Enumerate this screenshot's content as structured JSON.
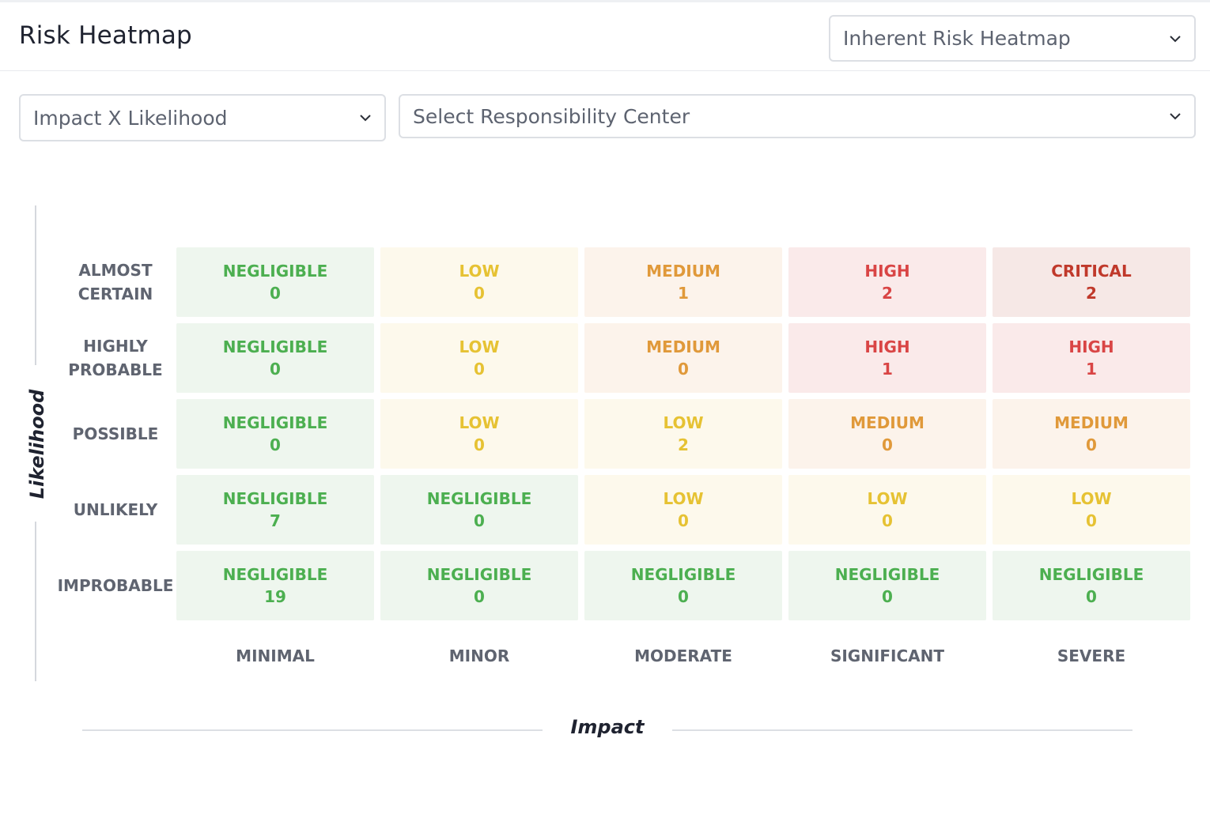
{
  "header": {
    "title": "Risk Heatmap",
    "heatmap_type_select": {
      "value": "Inherent Risk Heatmap"
    }
  },
  "filters": {
    "axis_select": {
      "value": "Impact X Likelihood"
    },
    "responsibility_center_select": {
      "placeholder": "Select Responsibility Center"
    }
  },
  "chart_data": {
    "type": "heatmap",
    "ylabel": "Likelihood",
    "xlabel": "Impact",
    "rows": [
      {
        "label_lines": [
          "ALMOST",
          "CERTAIN"
        ],
        "cells": [
          {
            "level": "NEGLIGIBLE",
            "count": "0"
          },
          {
            "level": "LOW",
            "count": "0"
          },
          {
            "level": "MEDIUM",
            "count": "1"
          },
          {
            "level": "HIGH",
            "count": "2"
          },
          {
            "level": "CRITICAL",
            "count": "2"
          }
        ]
      },
      {
        "label_lines": [
          "HIGHLY",
          "PROBABLE"
        ],
        "cells": [
          {
            "level": "NEGLIGIBLE",
            "count": "0"
          },
          {
            "level": "LOW",
            "count": "0"
          },
          {
            "level": "MEDIUM",
            "count": "0"
          },
          {
            "level": "HIGH",
            "count": "1"
          },
          {
            "level": "HIGH",
            "count": "1"
          }
        ]
      },
      {
        "label_lines": [
          "POSSIBLE"
        ],
        "cells": [
          {
            "level": "NEGLIGIBLE",
            "count": "0"
          },
          {
            "level": "LOW",
            "count": "0"
          },
          {
            "level": "LOW",
            "count": "2"
          },
          {
            "level": "MEDIUM",
            "count": "0"
          },
          {
            "level": "MEDIUM",
            "count": "0"
          }
        ]
      },
      {
        "label_lines": [
          "UNLIKELY"
        ],
        "cells": [
          {
            "level": "NEGLIGIBLE",
            "count": "7"
          },
          {
            "level": "NEGLIGIBLE",
            "count": "0"
          },
          {
            "level": "LOW",
            "count": "0"
          },
          {
            "level": "LOW",
            "count": "0"
          },
          {
            "level": "LOW",
            "count": "0"
          }
        ]
      },
      {
        "label_lines": [
          "IMPROBABLE"
        ],
        "cells": [
          {
            "level": "NEGLIGIBLE",
            "count": "19"
          },
          {
            "level": "NEGLIGIBLE",
            "count": "0"
          },
          {
            "level": "NEGLIGIBLE",
            "count": "0"
          },
          {
            "level": "NEGLIGIBLE",
            "count": "0"
          },
          {
            "level": "NEGLIGIBLE",
            "count": "0"
          }
        ]
      }
    ],
    "columns": [
      "MINIMAL",
      "MINOR",
      "MODERATE",
      "SIGNIFICANT",
      "SEVERE"
    ],
    "level_colors": {
      "NEGLIGIBLE": {
        "text": "#4caf50",
        "bg": "#eef6ee"
      },
      "LOW": {
        "text": "#e6c233",
        "bg": "#fdf9ec"
      },
      "MEDIUM": {
        "text": "#e0993a",
        "bg": "#fcf3eb"
      },
      "HIGH": {
        "text": "#d94545",
        "bg": "#faeaea"
      },
      "CRITICAL": {
        "text": "#c0392b",
        "bg": "#f6e8e6"
      }
    }
  }
}
